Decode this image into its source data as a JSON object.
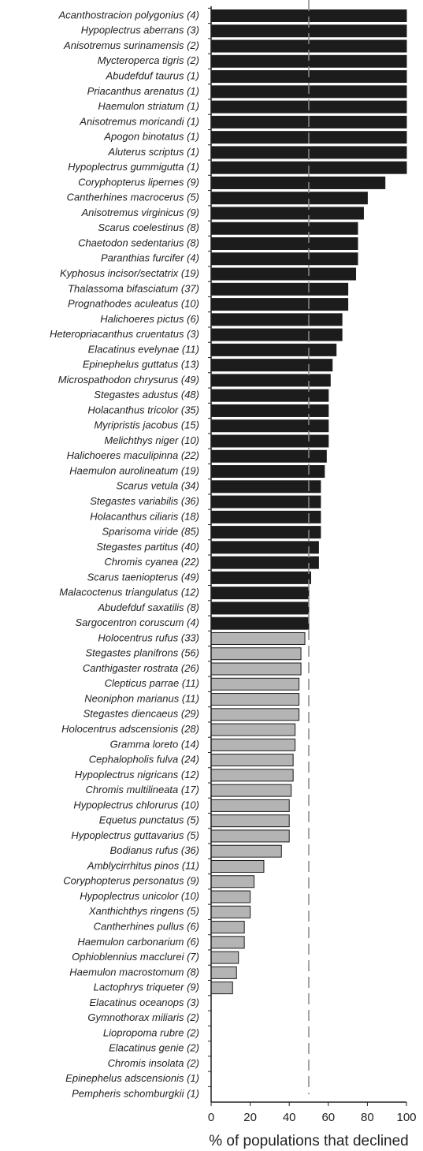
{
  "chart_data": {
    "type": "bar",
    "orientation": "horizontal",
    "x_label": "% of populations that declined",
    "categories": [
      "Acanthostracion polygonius (4)",
      "Hypoplectrus aberrans (3)",
      "Anisotremus surinamensis (2)",
      "Mycteroperca tigris (2)",
      "Abudefduf taurus (1)",
      "Priacanthus arenatus (1)",
      "Haemulon striatum (1)",
      "Anisotremus moricandi (1)",
      "Apogon binotatus (1)",
      "Aluterus scriptus (1)",
      "Hypoplectrus gummigutta (1)",
      "Coryphopterus lipernes (9)",
      "Cantherhines macrocerus (5)",
      "Anisotremus virginicus (9)",
      "Scarus coelestinus (8)",
      "Chaetodon sedentarius (8)",
      "Paranthias furcifer (4)",
      "Kyphosus incisor/sectatrix (19)",
      "Thalassoma bifasciatum (37)",
      "Prognathodes aculeatus (10)",
      "Halichoeres pictus (6)",
      "Heteropriacanthus cruentatus (3)",
      "Elacatinus evelynae (11)",
      "Epinephelus guttatus (13)",
      "Microspathodon chrysurus (49)",
      "Stegastes adustus (48)",
      "Holacanthus tricolor (35)",
      "Myripristis jacobus (15)",
      "Melichthys niger (10)",
      "Halichoeres maculipinna (22)",
      "Haemulon aurolineatum (19)",
      "Scarus vetula (34)",
      "Stegastes variabilis (36)",
      "Holacanthus ciliaris (18)",
      "Sparisoma viride (85)",
      "Stegastes partitus (40)",
      "Chromis cyanea (22)",
      "Scarus taeniopterus (49)",
      "Malacoctenus triangulatus (12)",
      "Abudefduf saxatilis (8)",
      "Sargocentron coruscum (4)",
      "Holocentrus rufus (33)",
      "Stegastes planifrons (56)",
      "Canthigaster rostrata (26)",
      "Clepticus parrae (11)",
      "Neoniphon marianus (11)",
      "Stegastes diencaeus (29)",
      "Holocentrus adscensionis (28)",
      "Gramma loreto (14)",
      "Cephalopholis fulva (24)",
      "Hypoplectrus nigricans (12)",
      "Chromis multilineata (17)",
      "Hypoplectrus chlorurus (10)",
      "Equetus punctatus (5)",
      "Hypoplectrus guttavarius (5)",
      "Bodianus rufus (36)",
      "Amblycirrhitus pinos (11)",
      "Coryphopterus personatus (9)",
      "Hypoplectrus unicolor (10)",
      "Xanthichthys ringens (5)",
      "Cantherhines pullus (6)",
      "Haemulon carbonarium (6)",
      "Ophioblennius macclurei (7)",
      "Haemulon macrostomum (8)",
      "Lactophrys triqueter (9)",
      "Elacatinus oceanops (3)",
      "Gymnothorax miliaris (2)",
      "Liopropoma rubre (2)",
      "Elacatinus genie (2)",
      "Chromis insolata (2)",
      "Epinephelus adscensionis (1)",
      "Pempheris schomburgkii (1)"
    ],
    "values": [
      100,
      100,
      100,
      100,
      100,
      100,
      100,
      100,
      100,
      100,
      100,
      89,
      80,
      78,
      75,
      75,
      75,
      74,
      70,
      70,
      67,
      67,
      64,
      62,
      61,
      60,
      60,
      60,
      60,
      59,
      58,
      56,
      56,
      56,
      56,
      55,
      55,
      51,
      50,
      50,
      50,
      48,
      46,
      46,
      45,
      45,
      45,
      43,
      43,
      42,
      42,
      41,
      40,
      40,
      40,
      36,
      27,
      22,
      20,
      20,
      17,
      17,
      14,
      13,
      11,
      0,
      0,
      0,
      0,
      0,
      0,
      0
    ],
    "colors": [
      "#1c1c1c",
      "#1c1c1c",
      "#1c1c1c",
      "#1c1c1c",
      "#1c1c1c",
      "#1c1c1c",
      "#1c1c1c",
      "#1c1c1c",
      "#1c1c1c",
      "#1c1c1c",
      "#1c1c1c",
      "#1c1c1c",
      "#1c1c1c",
      "#1c1c1c",
      "#1c1c1c",
      "#1c1c1c",
      "#1c1c1c",
      "#1c1c1c",
      "#1c1c1c",
      "#1c1c1c",
      "#1c1c1c",
      "#1c1c1c",
      "#1c1c1c",
      "#1c1c1c",
      "#1c1c1c",
      "#1c1c1c",
      "#1c1c1c",
      "#1c1c1c",
      "#1c1c1c",
      "#1c1c1c",
      "#1c1c1c",
      "#1c1c1c",
      "#1c1c1c",
      "#1c1c1c",
      "#1c1c1c",
      "#1c1c1c",
      "#1c1c1c",
      "#1c1c1c",
      "#1c1c1c",
      "#1c1c1c",
      "#1c1c1c",
      "#b4b4b4",
      "#b4b4b4",
      "#b4b4b4",
      "#b4b4b4",
      "#b4b4b4",
      "#b4b4b4",
      "#b4b4b4",
      "#b4b4b4",
      "#b4b4b4",
      "#b4b4b4",
      "#b4b4b4",
      "#b4b4b4",
      "#b4b4b4",
      "#b4b4b4",
      "#b4b4b4",
      "#b4b4b4",
      "#b4b4b4",
      "#b4b4b4",
      "#b4b4b4",
      "#b4b4b4",
      "#b4b4b4",
      "#b4b4b4",
      "#b4b4b4",
      "#b4b4b4",
      "#b4b4b4",
      "#b4b4b4",
      "#b4b4b4",
      "#b4b4b4",
      "#b4b4b4",
      "#b4b4b4",
      "#b4b4b4"
    ],
    "xlim": [
      0,
      100
    ],
    "xticks": [
      0,
      20,
      40,
      60,
      80,
      100
    ],
    "reference_line": 50,
    "grid": false
  }
}
